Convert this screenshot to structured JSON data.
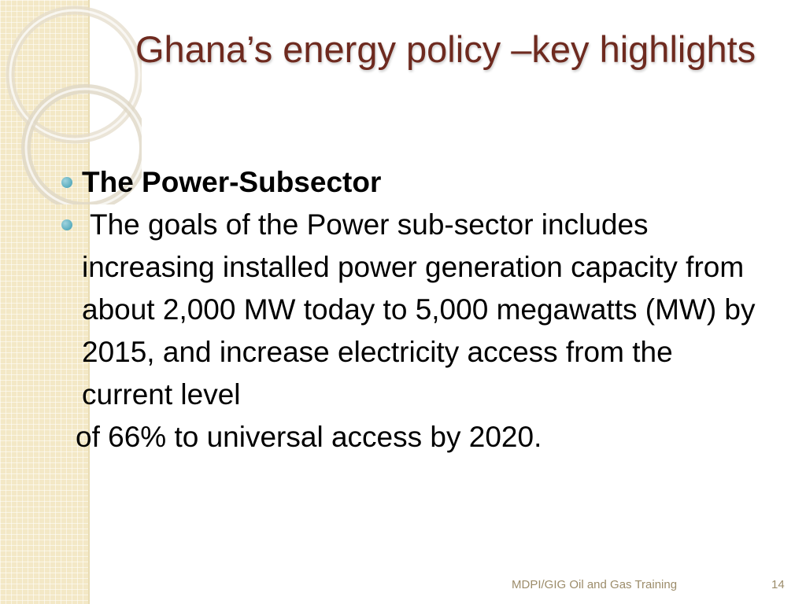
{
  "slide": {
    "title": "Ghana’s energy policy –key highlights",
    "bullets": [
      {
        "text": "The Power-Subsector",
        "style": "bold"
      },
      {
        "text": "The goals of the Power sub-sector includes increasing installed power generation capacity  from about 2,000 MW today to 5,000 megawatts (MW) by 2015, and increase electricity access from the current level",
        "style": "normal"
      }
    ],
    "continuation": "of 66% to universal access by 2020.",
    "footer": "MDPI/GIG Oil and Gas Training",
    "page_number": "14"
  },
  "colors": {
    "title": "#6e2a1f",
    "bullet": "#3b9bb0",
    "side_strip": "#f3e8c6",
    "footer": "#9c8c6a"
  }
}
